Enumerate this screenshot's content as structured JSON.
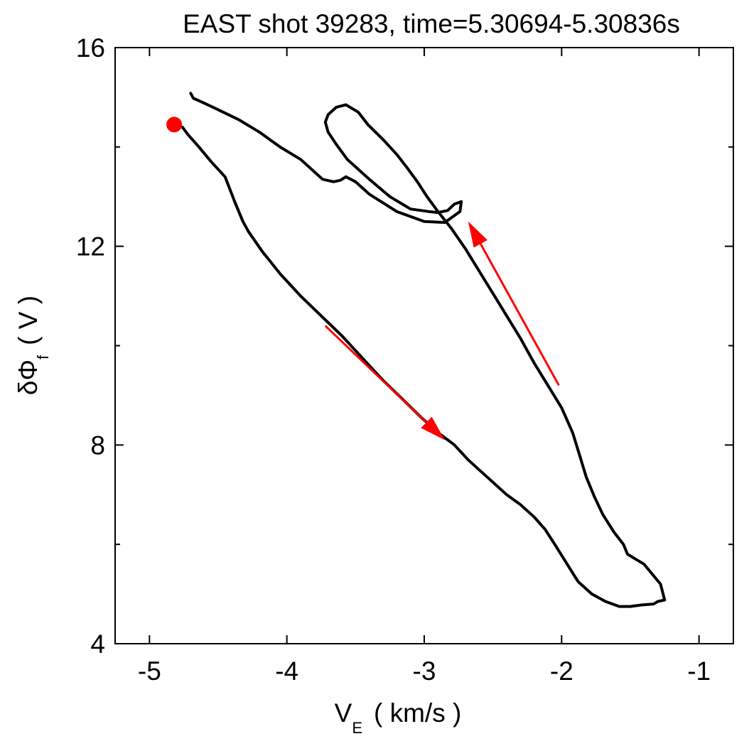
{
  "chart_data": {
    "type": "line",
    "title": "EAST shot 39283, time=5.30694-5.30836s",
    "xlabel": {
      "main": "V",
      "sub": "E",
      "unit": "( km/s )"
    },
    "ylabel": {
      "main": "δΦ",
      "sub": "f",
      "unit": "( V )"
    },
    "xlim": [
      -5.25,
      -0.75
    ],
    "ylim": [
      4,
      16
    ],
    "x_ticks": [
      -5,
      -4,
      -3,
      -2,
      -1
    ],
    "x_tick_labels": [
      "-5",
      "-4",
      "-3",
      "-2",
      "-1"
    ],
    "y_ticks": [
      4,
      8,
      12,
      16
    ],
    "y_tick_labels": [
      "4",
      "8",
      "12",
      "16"
    ],
    "y_minor_ticks": [
      6,
      10,
      14
    ],
    "grid": false,
    "colors": {
      "trajectory": "#000000",
      "marker": "#ff0000",
      "arrows": "#ff0000"
    },
    "start_point": {
      "x": -4.82,
      "y": 14.45
    },
    "series": [
      {
        "x": [
          -4.82,
          -4.76,
          -4.72,
          -4.64,
          -4.55,
          -4.45,
          -4.38,
          -4.32,
          -4.28,
          -4.18,
          -4.05,
          -3.9,
          -3.75,
          -3.6,
          -3.45,
          -3.3,
          -3.15,
          -3.02,
          -2.9,
          -2.78,
          -2.68,
          -2.6,
          -2.5,
          -2.4,
          -2.3,
          -2.2,
          -2.12,
          -2.05,
          -1.96,
          -1.88,
          -1.78,
          -1.68,
          -1.58,
          -1.5,
          -1.42,
          -1.33,
          -1.3,
          -1.25,
          -1.28,
          -1.4,
          -1.52,
          -1.55,
          -1.62,
          -1.7,
          -1.76,
          -1.82,
          -1.87,
          -1.92,
          -2.0,
          -2.1,
          -2.2,
          -2.3,
          -2.4,
          -2.5,
          -2.6,
          -2.7,
          -2.8,
          -2.9,
          -2.98,
          -3.05,
          -3.13,
          -3.2,
          -3.3,
          -3.41,
          -3.48,
          -3.57,
          -3.64,
          -3.7,
          -3.72,
          -3.7,
          -3.64,
          -3.56,
          -3.4,
          -3.25,
          -3.1,
          -2.97,
          -2.9,
          -2.83,
          -2.78,
          -2.73,
          -2.74,
          -2.85,
          -3.0,
          -3.2,
          -3.4,
          -3.5,
          -3.57,
          -3.61,
          -3.66,
          -3.74,
          -3.82,
          -3.9,
          -4.05,
          -4.2,
          -4.35,
          -4.5,
          -4.6,
          -4.68,
          -4.7
        ],
        "y": [
          14.45,
          14.4,
          14.25,
          14.0,
          13.7,
          13.4,
          12.9,
          12.5,
          12.3,
          11.9,
          11.45,
          11.0,
          10.6,
          10.2,
          9.75,
          9.3,
          8.9,
          8.55,
          8.25,
          8.0,
          7.7,
          7.5,
          7.25,
          7.0,
          6.8,
          6.55,
          6.3,
          6.0,
          5.6,
          5.25,
          5.0,
          4.85,
          4.75,
          4.75,
          4.78,
          4.8,
          4.85,
          4.88,
          5.2,
          5.6,
          5.8,
          6.0,
          6.25,
          6.6,
          6.95,
          7.35,
          7.8,
          8.25,
          8.75,
          9.2,
          9.65,
          10.15,
          10.6,
          11.05,
          11.5,
          11.95,
          12.35,
          12.7,
          13.0,
          13.3,
          13.6,
          13.85,
          14.15,
          14.45,
          14.7,
          14.85,
          14.8,
          14.65,
          14.5,
          14.3,
          14.05,
          13.75,
          13.35,
          13.0,
          12.75,
          12.7,
          12.68,
          12.72,
          12.85,
          12.9,
          12.7,
          12.48,
          12.5,
          12.7,
          13.05,
          13.3,
          13.4,
          13.33,
          13.3,
          13.35,
          13.55,
          13.75,
          14.0,
          14.3,
          14.55,
          14.75,
          14.88,
          14.98,
          15.08
        ]
      }
    ],
    "annotations": [
      {
        "type": "arrow",
        "from": [
          -3.72,
          10.4
        ],
        "to": [
          -2.85,
          8.1
        ]
      },
      {
        "type": "arrow",
        "from": [
          -2.02,
          9.2
        ],
        "to": [
          -2.68,
          12.5
        ]
      }
    ]
  }
}
